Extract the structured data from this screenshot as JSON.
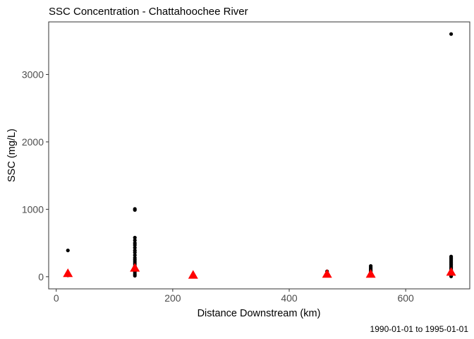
{
  "chart_data": {
    "type": "scatter",
    "title": "SSC Concentration - Chattahoochee River",
    "xlabel": "Distance Downstream (km)",
    "ylabel": "SSC (mg/L)",
    "caption": "1990-01-01 to 1995-01-01",
    "xlim": [
      -13,
      710
    ],
    "ylim": [
      -180,
      3780
    ],
    "x_ticks": [
      0,
      200,
      400,
      600
    ],
    "y_ticks": [
      0,
      1000,
      2000,
      3000
    ],
    "x_tick_labels": [
      "0",
      "200",
      "400",
      "600"
    ],
    "y_tick_labels": [
      "0",
      "1000",
      "2000",
      "3000"
    ],
    "grid": false,
    "legend": "none",
    "colors": {
      "points": "#000000",
      "means": "#ff0000"
    },
    "series": [
      {
        "marker": "circle",
        "points": [
          {
            "x": 20,
            "y": 390
          },
          {
            "x": 20,
            "y": 60
          },
          {
            "x": 20,
            "y": 40
          },
          {
            "x": 20,
            "y": 20
          },
          {
            "x": 135,
            "y": 1005
          },
          {
            "x": 135,
            "y": 990
          },
          {
            "x": 135,
            "y": 580
          },
          {
            "x": 135,
            "y": 540
          },
          {
            "x": 135,
            "y": 500
          },
          {
            "x": 135,
            "y": 470
          },
          {
            "x": 135,
            "y": 430
          },
          {
            "x": 135,
            "y": 390
          },
          {
            "x": 135,
            "y": 360
          },
          {
            "x": 135,
            "y": 320
          },
          {
            "x": 135,
            "y": 280
          },
          {
            "x": 135,
            "y": 250
          },
          {
            "x": 135,
            "y": 220
          },
          {
            "x": 135,
            "y": 190
          },
          {
            "x": 135,
            "y": 160
          },
          {
            "x": 135,
            "y": 130
          },
          {
            "x": 135,
            "y": 100
          },
          {
            "x": 135,
            "y": 70
          },
          {
            "x": 135,
            "y": 40
          },
          {
            "x": 135,
            "y": 15
          },
          {
            "x": 235,
            "y": 30
          },
          {
            "x": 235,
            "y": 15
          },
          {
            "x": 465,
            "y": 80
          },
          {
            "x": 465,
            "y": 50
          },
          {
            "x": 465,
            "y": 20
          },
          {
            "x": 540,
            "y": 160
          },
          {
            "x": 540,
            "y": 140
          },
          {
            "x": 540,
            "y": 120
          },
          {
            "x": 540,
            "y": 100
          },
          {
            "x": 540,
            "y": 80
          },
          {
            "x": 540,
            "y": 60
          },
          {
            "x": 540,
            "y": 40
          },
          {
            "x": 540,
            "y": 20
          },
          {
            "x": 678,
            "y": 3600
          },
          {
            "x": 678,
            "y": 300
          },
          {
            "x": 678,
            "y": 280
          },
          {
            "x": 678,
            "y": 260
          },
          {
            "x": 678,
            "y": 240
          },
          {
            "x": 678,
            "y": 220
          },
          {
            "x": 678,
            "y": 200
          },
          {
            "x": 678,
            "y": 180
          },
          {
            "x": 678,
            "y": 160
          },
          {
            "x": 678,
            "y": 140
          },
          {
            "x": 678,
            "y": 120
          },
          {
            "x": 678,
            "y": 100
          },
          {
            "x": 678,
            "y": 80
          },
          {
            "x": 678,
            "y": 60
          },
          {
            "x": 678,
            "y": 40
          },
          {
            "x": 678,
            "y": 20
          },
          {
            "x": 678,
            "y": 5
          }
        ]
      },
      {
        "marker": "triangle",
        "points": [
          {
            "x": 20,
            "y": 50
          },
          {
            "x": 135,
            "y": 130
          },
          {
            "x": 235,
            "y": 25
          },
          {
            "x": 465,
            "y": 40
          },
          {
            "x": 540,
            "y": 40
          },
          {
            "x": 678,
            "y": 70
          }
        ]
      }
    ]
  }
}
